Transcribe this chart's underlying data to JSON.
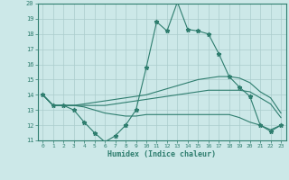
{
  "x": [
    0,
    1,
    2,
    3,
    4,
    5,
    6,
    7,
    8,
    9,
    10,
    11,
    12,
    13,
    14,
    15,
    16,
    17,
    18,
    19,
    20,
    21,
    22,
    23
  ],
  "line1": [
    14.0,
    13.3,
    13.3,
    13.0,
    12.2,
    11.5,
    10.9,
    11.3,
    12.0,
    13.0,
    15.8,
    18.8,
    18.2,
    20.1,
    18.3,
    18.2,
    18.0,
    16.7,
    15.2,
    14.5,
    13.9,
    12.0,
    11.6,
    12.0
  ],
  "line2": [
    14.0,
    13.3,
    13.3,
    13.3,
    13.4,
    13.5,
    13.6,
    13.7,
    13.8,
    13.9,
    14.0,
    14.2,
    14.4,
    14.6,
    14.8,
    15.0,
    15.1,
    15.2,
    15.2,
    15.1,
    14.8,
    14.2,
    13.8,
    12.8
  ],
  "line3": [
    14.0,
    13.3,
    13.3,
    13.3,
    13.3,
    13.3,
    13.3,
    13.4,
    13.5,
    13.6,
    13.7,
    13.8,
    13.9,
    14.0,
    14.1,
    14.2,
    14.3,
    14.3,
    14.3,
    14.3,
    14.2,
    13.8,
    13.4,
    12.5
  ],
  "line4": [
    14.0,
    13.3,
    13.3,
    13.3,
    13.2,
    13.0,
    12.8,
    12.7,
    12.6,
    12.6,
    12.7,
    12.7,
    12.7,
    12.7,
    12.7,
    12.7,
    12.7,
    12.7,
    12.7,
    12.5,
    12.2,
    12.0,
    11.7,
    12.0
  ],
  "color": "#2e7d6e",
  "bg_color": "#cce8e8",
  "grid_color": "#aacccc",
  "xlabel": "Humidex (Indice chaleur)",
  "ylim": [
    11,
    20
  ],
  "xlim": [
    -0.5,
    23.5
  ],
  "yticks": [
    11,
    12,
    13,
    14,
    15,
    16,
    17,
    18,
    19,
    20
  ],
  "xticks": [
    0,
    1,
    2,
    3,
    4,
    5,
    6,
    7,
    8,
    9,
    10,
    11,
    12,
    13,
    14,
    15,
    16,
    17,
    18,
    19,
    20,
    21,
    22,
    23
  ]
}
